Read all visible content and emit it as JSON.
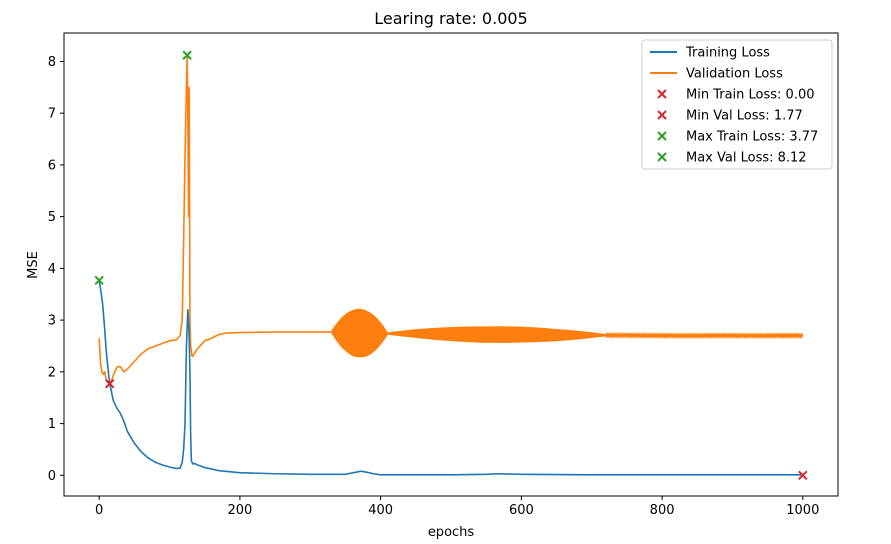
{
  "chart_data": {
    "type": "line",
    "title": "Learing rate: 0.005",
    "xlabel": "epochs",
    "ylabel": "MSE",
    "xlim": [
      -50,
      1050
    ],
    "ylim": [
      -0.4,
      8.55
    ],
    "xticks": [
      0,
      200,
      400,
      600,
      800,
      1000
    ],
    "yticks": [
      0,
      1,
      2,
      3,
      4,
      5,
      6,
      7,
      8
    ],
    "grid": false,
    "legend_position": "top-right",
    "series": [
      {
        "name": "Training Loss",
        "color": "#1f77b4",
        "x": [
          0,
          2,
          5,
          8,
          10,
          13,
          15,
          20,
          25,
          30,
          35,
          40,
          50,
          60,
          70,
          80,
          90,
          100,
          110,
          115,
          118,
          120,
          122,
          124,
          126,
          127,
          128,
          129,
          130,
          131,
          133,
          135,
          140,
          150,
          170,
          200,
          250,
          300,
          350,
          365,
          372,
          380,
          390,
          400,
          450,
          500,
          550,
          565,
          600,
          700,
          800,
          900,
          1000
        ],
        "y": [
          3.77,
          3.6,
          3.3,
          2.8,
          2.4,
          2.0,
          1.77,
          1.45,
          1.3,
          1.2,
          1.05,
          0.85,
          0.62,
          0.45,
          0.33,
          0.25,
          0.2,
          0.16,
          0.13,
          0.14,
          0.25,
          0.5,
          1.0,
          2.5,
          3.2,
          3.0,
          2.6,
          2.0,
          0.8,
          0.28,
          0.22,
          0.23,
          0.2,
          0.15,
          0.09,
          0.05,
          0.03,
          0.02,
          0.02,
          0.06,
          0.08,
          0.06,
          0.03,
          0.01,
          0.01,
          0.01,
          0.02,
          0.03,
          0.02,
          0.01,
          0.01,
          0.01,
          0.01
        ]
      },
      {
        "name": "Validation Loss",
        "color": "#ff7f0e",
        "x": [
          0,
          2,
          4,
          6,
          8,
          10,
          12,
          15,
          18,
          22,
          26,
          30,
          35,
          40,
          50,
          60,
          70,
          80,
          90,
          100,
          110,
          115,
          118,
          120,
          122,
          124,
          125,
          126,
          127,
          128,
          129,
          130,
          131,
          132,
          133,
          135,
          140,
          150,
          160,
          170,
          180,
          200,
          250,
          300,
          330,
          350,
          360,
          370,
          380,
          390,
          400,
          450,
          500,
          550,
          565,
          600,
          650,
          700,
          800,
          900,
          1000
        ],
        "y": [
          2.65,
          2.15,
          2.0,
          1.95,
          2.0,
          1.85,
          1.8,
          1.77,
          1.85,
          2.0,
          2.1,
          2.1,
          2.0,
          2.05,
          2.2,
          2.35,
          2.45,
          2.5,
          2.55,
          2.6,
          2.62,
          2.7,
          3.0,
          4.5,
          6.2,
          7.5,
          8.12,
          7.0,
          5.0,
          7.5,
          3.0,
          2.5,
          2.4,
          2.3,
          2.3,
          2.35,
          2.45,
          2.6,
          2.65,
          2.72,
          2.75,
          2.76,
          2.77,
          2.77,
          2.77,
          2.76,
          2.75,
          2.75,
          2.74,
          2.74,
          2.74,
          2.74,
          2.73,
          2.72,
          2.72,
          2.72,
          2.71,
          2.71,
          2.7,
          2.7,
          2.7
        ]
      }
    ],
    "markers": [
      {
        "name": "Min Train Loss: 0.00",
        "x": 1000,
        "y": 0.0,
        "color": "#d62728"
      },
      {
        "name": "Min Val Loss: 1.77",
        "x": 15,
        "y": 1.77,
        "color": "#d62728"
      },
      {
        "name": "Max Train Loss: 3.77",
        "x": 0,
        "y": 3.77,
        "color": "#2ca02c"
      },
      {
        "name": "Max Val Loss: 8.12",
        "x": 125,
        "y": 8.12,
        "color": "#2ca02c"
      }
    ],
    "validation_oscillation": [
      {
        "x_start": 330,
        "x_end": 410,
        "center_x": 370,
        "amplitude": 0.45
      },
      {
        "x_start": 410,
        "x_end": 720,
        "center_x": 565,
        "amplitude": 0.14
      },
      {
        "x_start": 720,
        "x_end": 1000,
        "center_x": 1000,
        "amplitude": 0.02
      }
    ]
  }
}
